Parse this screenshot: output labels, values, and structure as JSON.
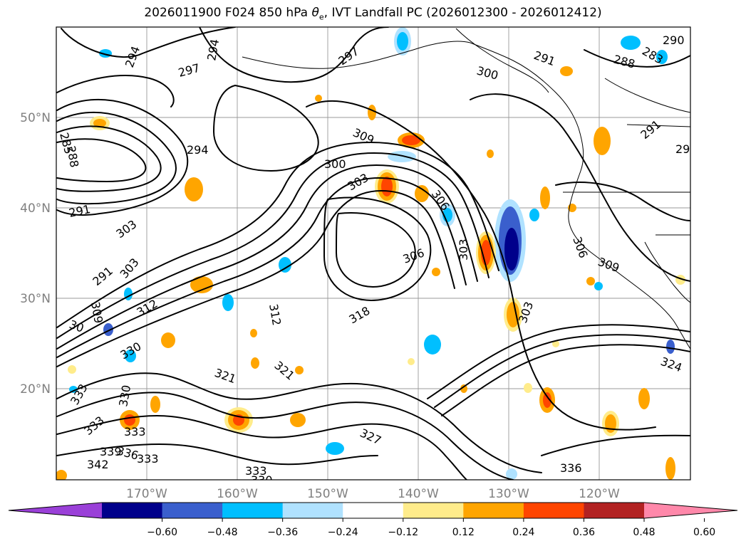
{
  "title": {
    "prefix": "2026011900 F024 850 hPa ",
    "theta": "θ",
    "theta_sub": "e",
    "suffix": ", IVT Landfall PC (2026012300 - 2026012412)"
  },
  "map": {
    "lon_ticks": [
      "170°W",
      "160°W",
      "150°W",
      "140°W",
      "130°W",
      "120°W"
    ],
    "lat_ticks": [
      "50°N",
      "40°N",
      "30°N",
      "20°N"
    ],
    "contour_labels": [
      "294",
      "294",
      "297",
      "297",
      "291",
      "288",
      "283",
      "285",
      "288",
      "291",
      "291",
      "294",
      "300",
      "303",
      "309",
      "306",
      "291",
      "303",
      "306",
      "303",
      "309",
      "312",
      "312",
      "318",
      "303",
      "306",
      "309",
      "330",
      "330",
      "324",
      "321",
      "321",
      "327",
      "333",
      "333",
      "339",
      "336",
      "333",
      "342",
      "333",
      "330",
      "336",
      "324",
      "290",
      "29",
      "300",
      "30"
    ]
  },
  "colorbar": {
    "labels": [
      "−0.60",
      "−0.48",
      "−0.36",
      "−0.24",
      "−0.12",
      "0.12",
      "0.24",
      "0.36",
      "0.48",
      "0.60"
    ],
    "colors": [
      "#9a40d8",
      "#00008b",
      "#3a5fcd",
      "#00bfff",
      "#b0e2ff",
      "#ffffff",
      "#ffec8b",
      "#ffa500",
      "#ff4500",
      "#b22222",
      "#ff88aa"
    ]
  }
}
